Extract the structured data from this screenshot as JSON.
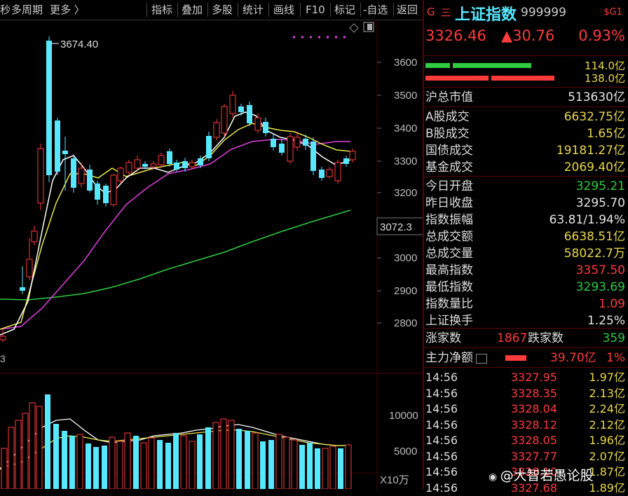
{
  "toolbar": {
    "left_cut": "秒",
    "period": "多周期",
    "more": "更多 〉",
    "indicator": "指标",
    "overlay": "叠加",
    "multi": "多股",
    "stats": "统计",
    "draw": "画线",
    "f10": "F10",
    "mark": "标记",
    "watch": "-自选",
    "back": "返回"
  },
  "quote": {
    "g_icon": "G",
    "menu_icon": "三",
    "name": "上证指数",
    "code": "999999",
    "badge": "$G1",
    "price": "3326.46",
    "change": "▲30.76",
    "pct": "0.93%",
    "buy_bar_val": "114.0亿",
    "sell_bar_val": "138.0亿",
    "market_cap_label": "沪总市值",
    "market_cap": "513630亿",
    "colors": {
      "up": "#ff3b3b",
      "down": "#2ecc40",
      "value": "#e8d84a",
      "panel_sep": "#5a0000"
    }
  },
  "stats1": [
    {
      "label": "A股成交",
      "value": "6632.75亿"
    },
    {
      "label": "B股成交",
      "value": "1.65亿"
    },
    {
      "label": "国债成交",
      "value": "19181.27亿"
    },
    {
      "label": "基金成交",
      "value": "2069.40亿"
    }
  ],
  "stats2": [
    {
      "label": "今日开盘",
      "value": "3295.21",
      "tone": "green"
    },
    {
      "label": "昨日收盘",
      "value": "3295.70",
      "tone": "white"
    },
    {
      "label": "指数振幅",
      "value": "63.81/1.94%",
      "tone": "white"
    },
    {
      "label": "总成交额",
      "value": "6638.51亿",
      "tone": "yellow"
    },
    {
      "label": "总成交量",
      "value": "58022.7万",
      "tone": "yellow"
    },
    {
      "label": "最高指数",
      "value": "3357.50",
      "tone": "red"
    },
    {
      "label": "最低指数",
      "value": "3293.69",
      "tone": "green"
    },
    {
      "label": "指数量比",
      "value": "1.09",
      "tone": "red"
    },
    {
      "label": "上证换手",
      "value": "1.25%",
      "tone": "white"
    }
  ],
  "breadth": {
    "up_label": "涨家数",
    "up": "1867",
    "down_label": "跌家数",
    "down": "359"
  },
  "netflow": {
    "label": "主力净额",
    "value": "39.70亿",
    "pct": "1%"
  },
  "ticks": [
    {
      "time": "14:56",
      "price": "3327.95",
      "vol": "1.97亿"
    },
    {
      "time": "14:56",
      "price": "3328.35",
      "vol": "2.13亿"
    },
    {
      "time": "14:56",
      "price": "3328.04",
      "vol": "2.24亿"
    },
    {
      "time": "14:56",
      "price": "3328.12",
      "vol": "2.12亿"
    },
    {
      "time": "14:56",
      "price": "3328.05",
      "vol": "1.96亿"
    },
    {
      "time": "14:56",
      "price": "3327.77",
      "vol": "2.07亿"
    },
    {
      "time": "14:56",
      "price": "3328.10",
      "vol": "1.87亿"
    },
    {
      "time": "14:56",
      "price": "3327.68",
      "vol": "1.89亿"
    }
  ],
  "watermark": "@大智若愚论股",
  "chart": {
    "price_ticks": [
      "3600",
      "3500",
      "3400",
      "3300",
      "3200",
      "3000",
      "2900",
      "2800"
    ],
    "current_tag": "3072.3",
    "high_label": "3674.40",
    "vol_ticks": [
      "10000",
      "5000"
    ],
    "vol_unit": "X10万",
    "left_edge_digit": "3"
  }
}
